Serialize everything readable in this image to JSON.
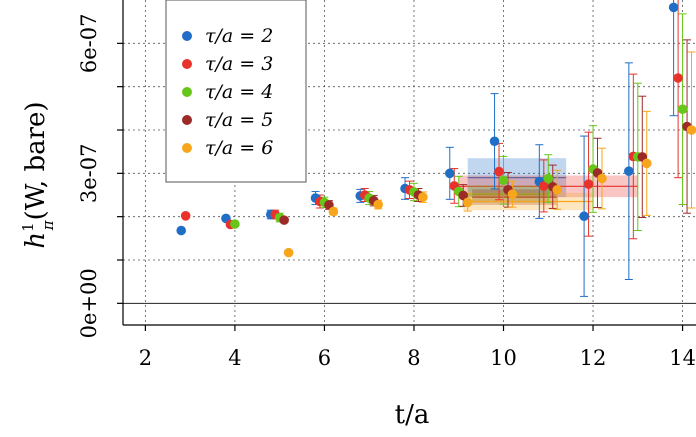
{
  "chart_data": {
    "type": "scatter",
    "title": "",
    "xlabel": "t/a",
    "ylabel_parts": {
      "main": "h",
      "sup": "1",
      "sub": "π",
      "args": "(W, bare)"
    },
    "xlim": [
      1.5,
      14.3
    ],
    "ylim": [
      -5e-08,
      7e-07
    ],
    "x_ticks": [
      2,
      4,
      6,
      8,
      10,
      12,
      14
    ],
    "x_tick_labels": [
      "2",
      "4",
      "6",
      "8",
      "10",
      "12",
      "14"
    ],
    "y_ticks": [
      0,
      3e-07,
      6e-07
    ],
    "y_tick_labels": [
      "0e+00",
      "3e-07",
      "6e-07"
    ],
    "y_minor_grid": [
      1e-07,
      2e-07,
      4e-07,
      5e-07
    ],
    "grid": "dotted",
    "legend_position": "top-left",
    "series": [
      {
        "name": "τ/a = 2",
        "color": "#1f6fc6",
        "x": [
          2.8,
          3.8,
          4.8,
          5.8,
          6.8,
          7.8,
          8.8,
          9.8,
          10.8,
          11.8,
          12.8,
          13.8
        ],
        "y": [
          1.68e-07,
          1.96e-07,
          2.05e-07,
          2.43e-07,
          2.48e-07,
          2.65e-07,
          3e-07,
          3.74e-07,
          2.81e-07,
          2.01e-07,
          3.05e-07,
          6.83e-07
        ],
        "err": [
          0,
          5e-09,
          1e-08,
          1.5e-08,
          1.5e-08,
          2.5e-08,
          6e-08,
          1.1e-07,
          8.5e-08,
          1.85e-07,
          2.5e-07,
          2.5e-07
        ]
      },
      {
        "name": "τ/a = 3",
        "color": "#e8322b",
        "x": [
          2.9,
          3.9,
          4.9,
          5.9,
          6.9,
          7.9,
          8.9,
          9.9,
          10.9,
          11.9,
          12.9,
          13.9
        ],
        "y": [
          2.02e-07,
          1.82e-07,
          2.05e-07,
          2.35e-07,
          2.5e-07,
          2.62e-07,
          2.71e-07,
          3.04e-07,
          2.71e-07,
          2.75e-07,
          3.39e-07,
          5.2e-07
        ],
        "err": [
          0,
          5e-09,
          1e-08,
          1.5e-08,
          1.5e-08,
          2e-08,
          4e-08,
          6.5e-08,
          6e-08,
          1.2e-07,
          1.9e-07,
          2.3e-07
        ]
      },
      {
        "name": "τ/a = 4",
        "color": "#66c619",
        "x": [
          4.0,
          5.0,
          6.0,
          7.0,
          8.0,
          9.0,
          10.0,
          11.0,
          12.0,
          13.0,
          14.0
        ],
        "y": [
          1.83e-07,
          1.98e-07,
          2.33e-07,
          2.43e-07,
          2.57e-07,
          2.58e-07,
          2.84e-07,
          2.88e-07,
          3.1e-07,
          3.38e-07,
          4.48e-07
        ],
        "err": [
          5e-09,
          1e-08,
          1.2e-08,
          1.5e-08,
          2e-08,
          3.5e-08,
          5.5e-08,
          5.5e-08,
          1e-07,
          1.7e-07,
          2.2e-07
        ]
      },
      {
        "name": "τ/a = 5",
        "color": "#9c2a27",
        "x": [
          5.1,
          6.1,
          7.1,
          8.1,
          9.1,
          10.1,
          11.1,
          12.1,
          13.1,
          14.1
        ],
        "y": [
          1.92e-07,
          2.27e-07,
          2.37e-07,
          2.5e-07,
          2.49e-07,
          2.62e-07,
          2.69e-07,
          3.01e-07,
          3.38e-07,
          4.08e-07
        ],
        "err": [
          5e-09,
          1e-08,
          1.2e-08,
          1.5e-08,
          2.5e-08,
          4e-08,
          5e-08,
          8e-08,
          1.4e-07,
          2e-07
        ]
      },
      {
        "name": "τ/a = 6",
        "color": "#f7a61b",
        "x": [
          5.2,
          6.2,
          7.2,
          8.2,
          9.2,
          10.2,
          11.2,
          12.2,
          13.2,
          14.2
        ],
        "y": [
          1.17e-07,
          2.12e-07,
          2.28e-07,
          2.45e-07,
          2.33e-07,
          2.52e-07,
          2.62e-07,
          2.88e-07,
          3.23e-07,
          4e-07
        ],
        "err": [
          0,
          8e-09,
          1e-08,
          1.2e-08,
          2e-08,
          3e-08,
          4.5e-08,
          7e-08,
          1.2e-07,
          1.8e-07
        ]
      }
    ],
    "fit_bands": [
      {
        "series": "τ/a = 2",
        "color": "#1f6fc6",
        "x_range": [
          9.2,
          11.4
        ],
        "center": 2.9e-07,
        "half_width": 4.5e-08
      },
      {
        "series": "τ/a = 3",
        "color": "#e8322b",
        "x_range": [
          9.0,
          13.0
        ],
        "center": 2.7e-07,
        "half_width": 2.5e-08
      },
      {
        "series": "τ/a = 4",
        "color": "#66c619",
        "x_range": [
          9.2,
          11.0
        ],
        "center": 2.52e-07,
        "half_width": 2e-08
      },
      {
        "series": "τ/a = 5",
        "color": "#9c2a27",
        "x_range": [
          9.3,
          11.2
        ],
        "center": 2.45e-07,
        "half_width": 1.8e-08
      },
      {
        "series": "τ/a = 6",
        "color": "#f7a61b",
        "x_range": [
          9.1,
          12.0
        ],
        "center": 2.35e-07,
        "half_width": 2e-08
      }
    ]
  }
}
